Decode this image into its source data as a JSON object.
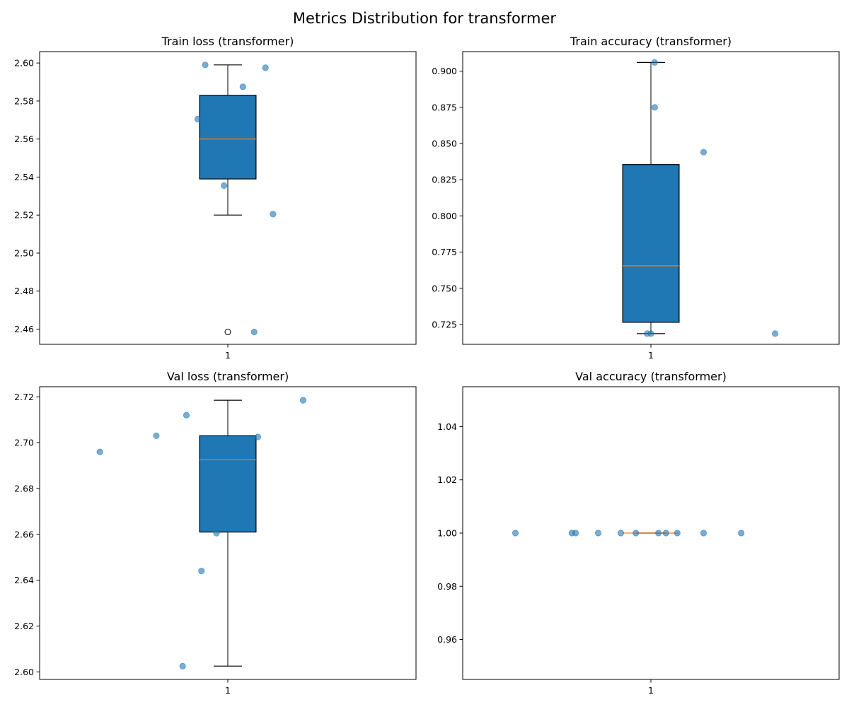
{
  "figure": {
    "title": "Metrics Distribution for transformer"
  },
  "colors": {
    "box_fill": "#1f77b4",
    "box_edge": "#000000",
    "median": "#ff7f0e",
    "point": "#1f77b4",
    "outlier_fill": "#ffffff",
    "outlier_edge": "#000000"
  },
  "chart_data": [
    {
      "type": "box",
      "title": "Train loss (transformer)",
      "categories": [
        "1"
      ],
      "ylim": [
        2.452,
        2.606
      ],
      "yticks": [
        "2.46",
        "2.48",
        "2.50",
        "2.52",
        "2.54",
        "2.56",
        "2.58",
        "2.60"
      ],
      "box": {
        "q1": 2.539,
        "median": 2.56,
        "q3": 2.583,
        "whisker_low": 2.52,
        "whisker_high": 2.599,
        "outliers": [
          2.4585
        ]
      },
      "points": [
        {
          "x": 0.94,
          "y": 2.599
        },
        {
          "x": 1.1,
          "y": 2.5975
        },
        {
          "x": 1.04,
          "y": 2.5875
        },
        {
          "x": 0.92,
          "y": 2.5705
        },
        {
          "x": 0.99,
          "y": 2.5355
        },
        {
          "x": 1.12,
          "y": 2.5205
        },
        {
          "x": 1.07,
          "y": 2.4585
        }
      ]
    },
    {
      "type": "box",
      "title": "Train accuracy (transformer)",
      "categories": [
        "1"
      ],
      "ylim": [
        0.7113,
        0.9135
      ],
      "yticks": [
        "0.725",
        "0.750",
        "0.775",
        "0.800",
        "0.825",
        "0.850",
        "0.875",
        "0.900"
      ],
      "box": {
        "q1": 0.7265,
        "median": 0.7655,
        "q3": 0.8355,
        "whisker_low": 0.7187,
        "whisker_high": 0.906,
        "outliers": []
      },
      "points": [
        {
          "x": 1.01,
          "y": 0.906
        },
        {
          "x": 1.01,
          "y": 0.875
        },
        {
          "x": 1.14,
          "y": 0.844
        },
        {
          "x": 0.99,
          "y": 0.7187
        },
        {
          "x": 1.0,
          "y": 0.7187
        },
        {
          "x": 1.33,
          "y": 0.7187
        }
      ]
    },
    {
      "type": "box",
      "title": "Val loss (transformer)",
      "categories": [
        "1"
      ],
      "ylim": [
        2.5967,
        2.7244
      ],
      "yticks": [
        "2.60",
        "2.62",
        "2.64",
        "2.66",
        "2.68",
        "2.70",
        "2.72"
      ],
      "box": {
        "q1": 2.661,
        "median": 2.6925,
        "q3": 2.703,
        "whisker_low": 2.6025,
        "whisker_high": 2.7185,
        "outliers": []
      },
      "points": [
        {
          "x": 1.2,
          "y": 2.7185
        },
        {
          "x": 0.89,
          "y": 2.712
        },
        {
          "x": 0.81,
          "y": 2.703
        },
        {
          "x": 1.08,
          "y": 2.7025
        },
        {
          "x": 0.66,
          "y": 2.696
        },
        {
          "x": 0.97,
          "y": 2.6605
        },
        {
          "x": 0.93,
          "y": 2.644
        },
        {
          "x": 0.88,
          "y": 2.6025
        }
      ]
    },
    {
      "type": "box",
      "title": "Val accuracy (transformer)",
      "categories": [
        "1"
      ],
      "ylim": [
        0.945,
        1.055
      ],
      "yticks": [
        "0.96",
        "0.98",
        "1.00",
        "1.02",
        "1.04"
      ],
      "box": {
        "q1": 1.0,
        "median": 1.0,
        "q3": 1.0,
        "whisker_low": 1.0,
        "whisker_high": 1.0,
        "outliers": []
      },
      "points": [
        {
          "x": 0.64,
          "y": 1.0
        },
        {
          "x": 0.79,
          "y": 1.0
        },
        {
          "x": 0.8,
          "y": 1.0
        },
        {
          "x": 0.86,
          "y": 1.0
        },
        {
          "x": 0.92,
          "y": 1.0
        },
        {
          "x": 0.96,
          "y": 1.0
        },
        {
          "x": 1.02,
          "y": 1.0
        },
        {
          "x": 1.04,
          "y": 1.0
        },
        {
          "x": 1.07,
          "y": 1.0
        },
        {
          "x": 1.14,
          "y": 1.0
        },
        {
          "x": 1.24,
          "y": 1.0
        }
      ]
    }
  ]
}
